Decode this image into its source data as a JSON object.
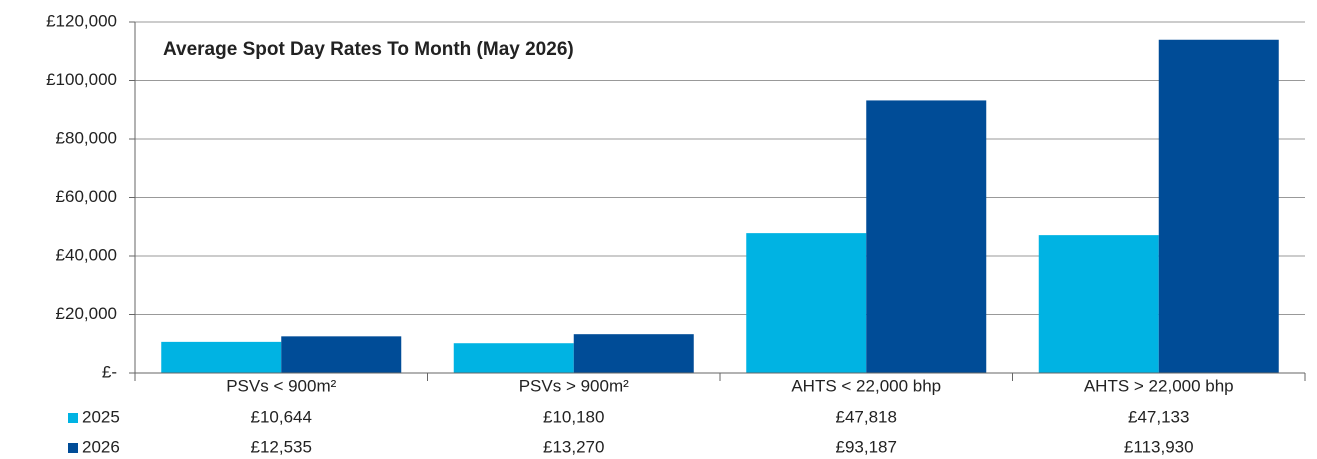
{
  "chart_data": {
    "type": "bar",
    "title": "Average Spot Day Rates To Month (May 2026)",
    "categories": [
      "PSVs < 900m²",
      "PSVs > 900m²",
      "AHTS < 22,000 bhp",
      "AHTS > 22,000 bhp"
    ],
    "series": [
      {
        "name": "2025",
        "color": "#00b3e3",
        "values": [
          10644,
          10180,
          47818,
          47133
        ],
        "value_labels": [
          "£10,644",
          "£10,180",
          "£47,818",
          "£47,133"
        ]
      },
      {
        "name": "2026",
        "color": "#004c97",
        "values": [
          12535,
          13270,
          93187,
          113930
        ],
        "value_labels": [
          "£12,535",
          "£13,270",
          "£93,187",
          "£113,930"
        ]
      }
    ],
    "ylim": [
      0,
      120000
    ],
    "yticks": [
      {
        "value": 0,
        "label": "£-"
      },
      {
        "value": 20000,
        "label": "£20,000"
      },
      {
        "value": 40000,
        "label": "£40,000"
      },
      {
        "value": 60000,
        "label": "£60,000"
      },
      {
        "value": 80000,
        "label": "£80,000"
      },
      {
        "value": 100000,
        "label": "£100,000"
      },
      {
        "value": 120000,
        "label": "£120,000"
      }
    ],
    "grid": true
  }
}
